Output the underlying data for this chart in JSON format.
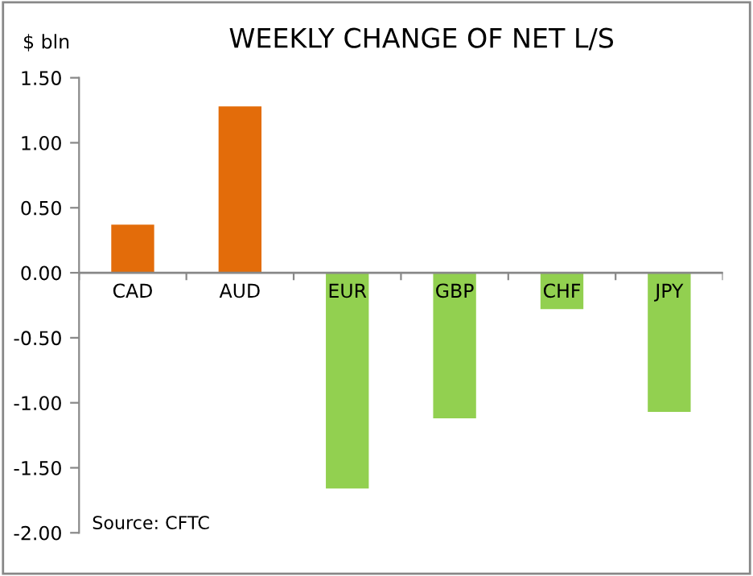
{
  "chart_data": {
    "type": "bar",
    "title": "WEEKLY CHANGE OF NET L/S",
    "ylabel": "$ bln",
    "categories": [
      "CAD",
      "AUD",
      "EUR",
      "GBP",
      "CHF",
      "JPY"
    ],
    "values": [
      0.37,
      1.28,
      -1.66,
      -1.12,
      -0.28,
      -1.07
    ],
    "colors": [
      "#e36c0a",
      "#e36c0a",
      "#92d050",
      "#92d050",
      "#92d050",
      "#92d050"
    ],
    "ylim": [
      -2,
      1.5
    ],
    "yticks": [
      {
        "value": -2,
        "label": "-2.00"
      },
      {
        "value": -1.5,
        "label": "-1.50"
      },
      {
        "value": -1,
        "label": "-1.00"
      },
      {
        "value": -0.5,
        "label": "-0.50"
      },
      {
        "value": 0,
        "label": "0.00"
      },
      {
        "value": 0.5,
        "label": "0.50"
      },
      {
        "value": 1,
        "label": "1.00"
      },
      {
        "value": 1.5,
        "label": "1.50"
      }
    ],
    "grid": false,
    "legend": false,
    "annotations": [
      "Source: CFTC"
    ]
  }
}
